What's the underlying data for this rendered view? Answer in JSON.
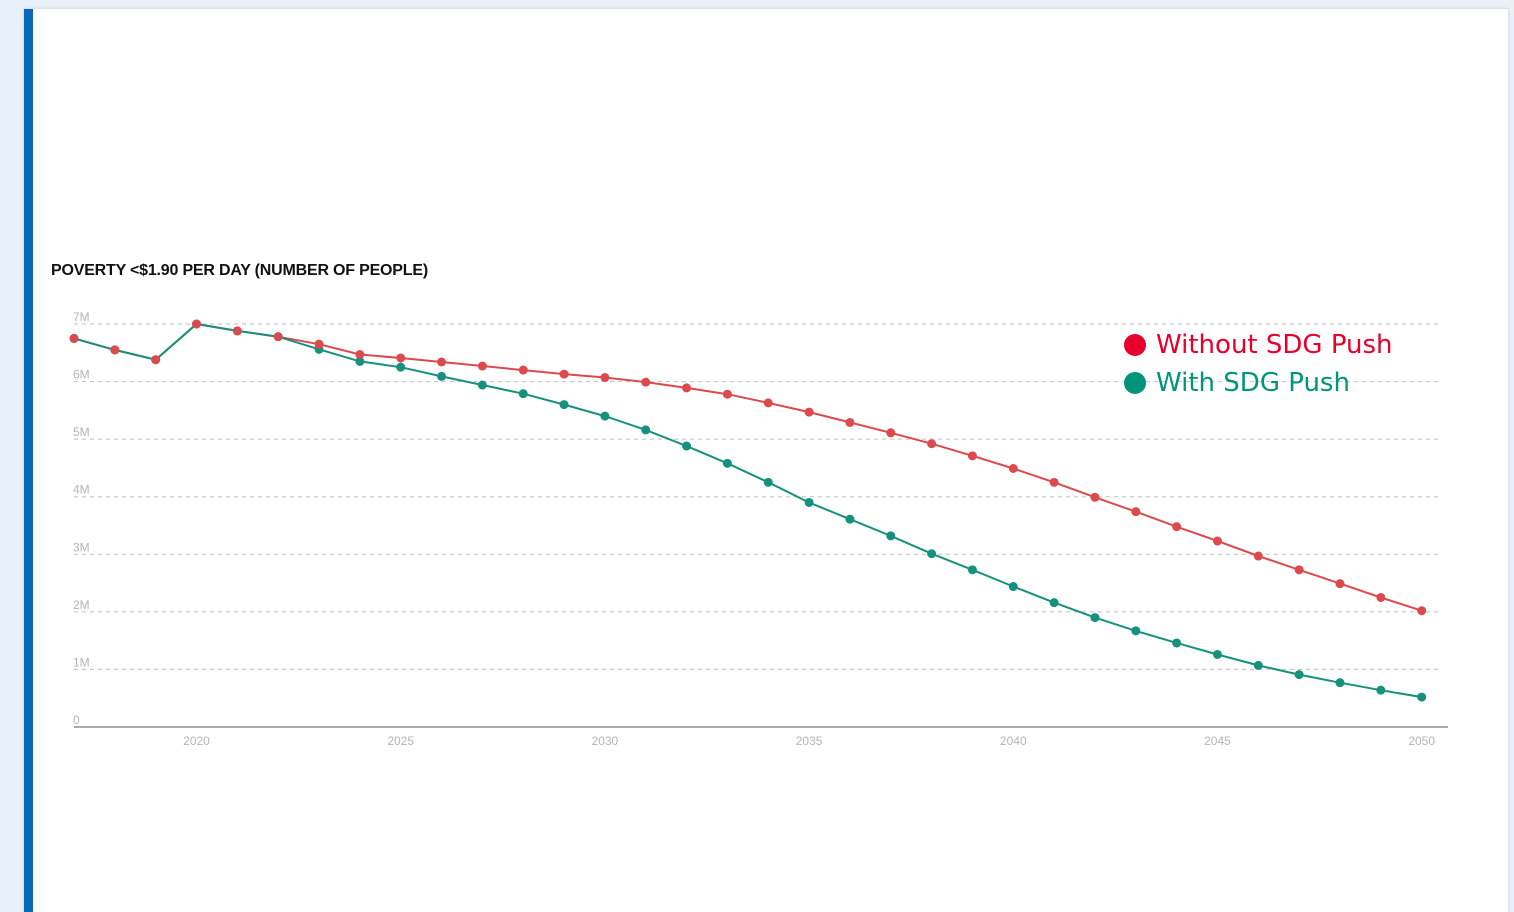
{
  "colors": {
    "accent": "#0a6ab8",
    "without": "#e8002c",
    "with": "#00957a",
    "without_line": "#dc4a4d",
    "with_line": "#16917d"
  },
  "chart_data": {
    "type": "line",
    "title": "POVERTY <$1.90 PER DAY (NUMBER OF PEOPLE)",
    "xlabel": "",
    "ylabel": "",
    "x": [
      2017,
      2018,
      2019,
      2020,
      2021,
      2022,
      2023,
      2024,
      2025,
      2026,
      2027,
      2028,
      2029,
      2030,
      2031,
      2032,
      2033,
      2034,
      2035,
      2036,
      2037,
      2038,
      2039,
      2040,
      2041,
      2042,
      2043,
      2044,
      2045,
      2046,
      2047,
      2048,
      2049,
      2050
    ],
    "xlim": [
      2017,
      2050.4
    ],
    "ylim": [
      0,
      7000000
    ],
    "x_ticks": [
      2020,
      2025,
      2030,
      2035,
      2040,
      2045,
      2050
    ],
    "y_ticks": [
      0,
      1000000,
      2000000,
      3000000,
      4000000,
      5000000,
      6000000,
      7000000
    ],
    "y_tick_labels": [
      "0",
      "1M",
      "2M",
      "3M",
      "4M",
      "5M",
      "6M",
      "7M"
    ],
    "grid": true,
    "legend_position": "top-right",
    "series": [
      {
        "name": "Without SDG Push",
        "color": "#dc4a4d",
        "values": [
          6750000,
          6550000,
          6380000,
          7000000,
          6880000,
          6780000,
          6650000,
          6470000,
          6410000,
          6340000,
          6270000,
          6200000,
          6130000,
          6070000,
          5990000,
          5890000,
          5780000,
          5630000,
          5470000,
          5290000,
          5110000,
          4920000,
          4710000,
          4490000,
          4250000,
          3990000,
          3740000,
          3480000,
          3230000,
          2970000,
          2730000,
          2490000,
          2250000,
          2020000
        ]
      },
      {
        "name": "With SDG Push",
        "color": "#16917d",
        "values": [
          6750000,
          6550000,
          6380000,
          7000000,
          6880000,
          6780000,
          6560000,
          6350000,
          6250000,
          6090000,
          5940000,
          5790000,
          5600000,
          5400000,
          5160000,
          4880000,
          4580000,
          4250000,
          3900000,
          3610000,
          3320000,
          3010000,
          2730000,
          2440000,
          2160000,
          1900000,
          1670000,
          1460000,
          1260000,
          1070000,
          910000,
          770000,
          640000,
          520000
        ]
      }
    ]
  }
}
